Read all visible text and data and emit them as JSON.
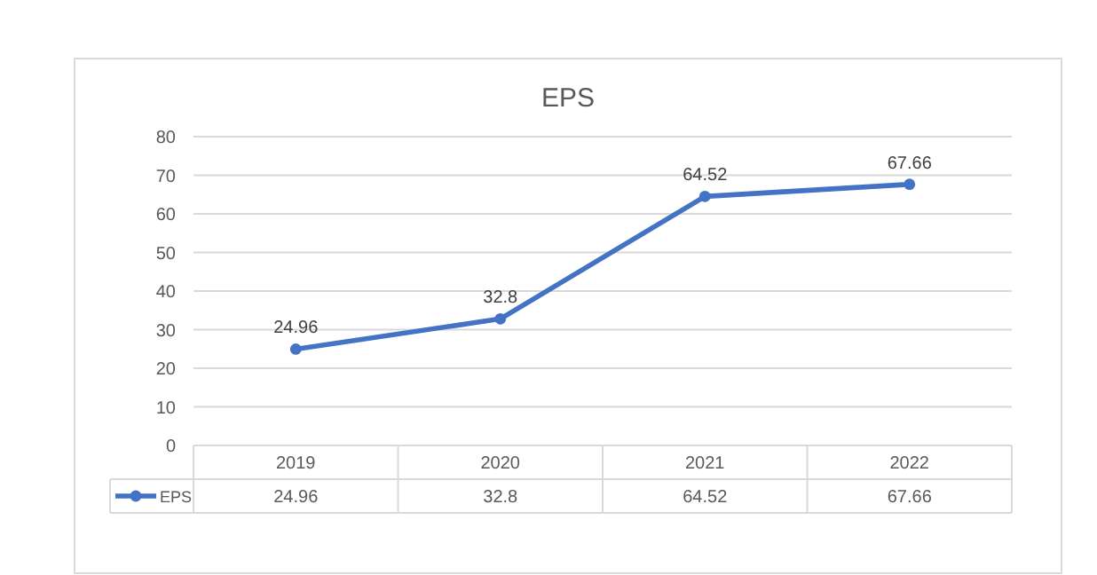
{
  "chart_data": {
    "type": "line",
    "title": "EPS",
    "categories": [
      "2019",
      "2020",
      "2021",
      "2022"
    ],
    "series": [
      {
        "name": "EPS",
        "color": "#4472c4",
        "values": [
          24.96,
          32.8,
          64.52,
          67.66
        ],
        "value_labels": [
          "24.96",
          "32.8",
          "64.52",
          "67.66"
        ]
      }
    ],
    "ylim": [
      0,
      80
    ],
    "yticks": [
      0,
      10,
      20,
      30,
      40,
      50,
      60,
      70,
      80
    ],
    "grid": "y",
    "annotations": [
      "24.96",
      "32.8",
      "64.52",
      "67.66"
    ],
    "legend": "bottom",
    "marker": "circle",
    "line_style": "solid",
    "data_labels": true
  }
}
